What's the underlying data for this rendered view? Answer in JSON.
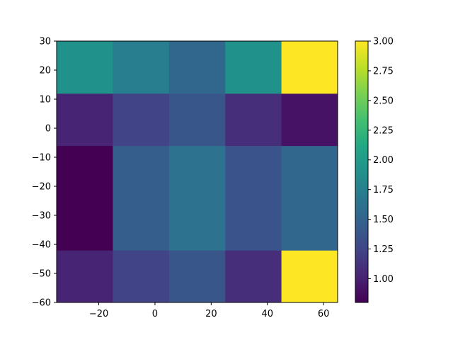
{
  "chart_data": {
    "type": "heatmap",
    "title": "",
    "xlabel": "",
    "ylabel": "",
    "x_edges": [
      -35,
      -15,
      5,
      25,
      45,
      65
    ],
    "y_edges": [
      -60,
      -42,
      -6,
      12,
      30
    ],
    "xlim": [
      -35,
      65
    ],
    "ylim": [
      -60,
      30
    ],
    "x_ticks": [
      -20,
      0,
      20,
      40,
      60
    ],
    "y_ticks": [
      30,
      20,
      10,
      0,
      -10,
      -20,
      -30,
      -40,
      -50,
      -60
    ],
    "values": [
      [
        1.02,
        1.24,
        1.39,
        1.09,
        3.0
      ],
      [
        0.8,
        1.45,
        1.63,
        1.37,
        1.53
      ],
      [
        1.02,
        1.24,
        1.39,
        1.09,
        0.91
      ],
      [
        1.9,
        1.72,
        1.53,
        1.9,
        3.0
      ]
    ],
    "values_row_order": "bottom-to-top (row 0 = y from -60 to -42)",
    "colormap": "viridis",
    "colorbar": {
      "vmin": 0.8,
      "vmax": 3.0,
      "ticks": [
        "1.00",
        "1.25",
        "1.50",
        "1.75",
        "2.00",
        "2.25",
        "2.50",
        "2.75",
        "3.00"
      ]
    },
    "grid": false,
    "legend": null
  },
  "x_tick_labels": [
    "−20",
    "0",
    "20",
    "40",
    "60"
  ],
  "y_tick_labels": [
    "30",
    "20",
    "10",
    "0",
    "−10",
    "−20",
    "−30",
    "−40",
    "−50",
    "−60"
  ],
  "colorbar_tick_labels": [
    "1.00",
    "1.25",
    "1.50",
    "1.75",
    "2.00",
    "2.25",
    "2.50",
    "2.75",
    "3.00"
  ]
}
